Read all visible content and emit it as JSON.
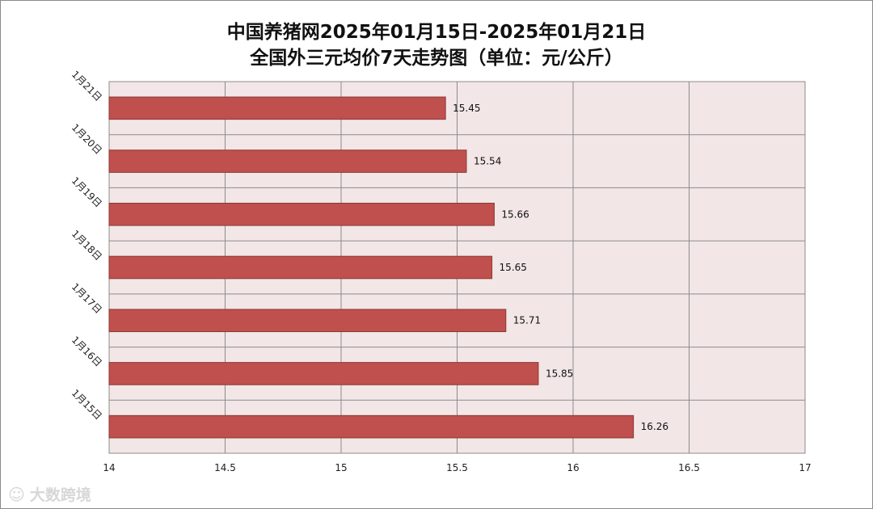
{
  "title_line1": "中国养猪网2025年01月15日-2025年01月21日",
  "title_line2": "全国外三元均价7天走势图（单位：元/公斤）",
  "watermark_text": "大数跨境",
  "chart_data": {
    "type": "bar",
    "orientation": "horizontal",
    "categories": [
      "1月21日",
      "1月20日",
      "1月19日",
      "1月18日",
      "1月17日",
      "1月16日",
      "1月15日"
    ],
    "values": [
      15.45,
      15.54,
      15.66,
      15.65,
      15.71,
      15.85,
      16.26
    ],
    "value_labels": [
      "15.45",
      "15.54",
      "15.66",
      "15.65",
      "15.71",
      "15.85",
      "16.26"
    ],
    "xlim": [
      14,
      17
    ],
    "x_ticks": [
      14,
      14.5,
      15,
      15.5,
      16,
      16.5,
      17
    ],
    "x_tick_labels": [
      "14",
      "14.5",
      "15",
      "15.5",
      "16",
      "16.5",
      "17"
    ],
    "grid": true,
    "bar_color": "#c0504d",
    "bar_border_color": "#8c3836",
    "plot_background": "#f2e6e6",
    "grid_color": "#8c8c8c"
  }
}
